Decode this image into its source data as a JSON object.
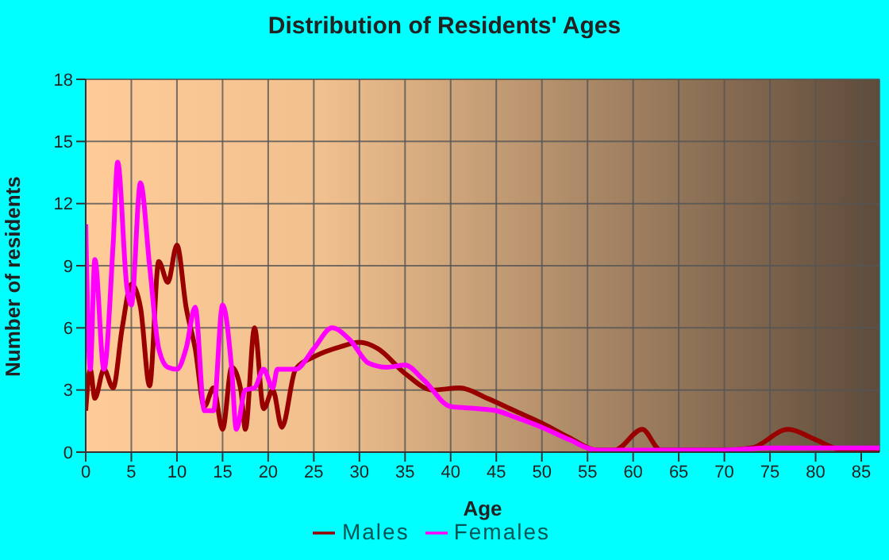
{
  "chart_data": {
    "type": "line",
    "title": "Distribution of Residents' Ages",
    "xlabel": "Age",
    "ylabel": "Number of residents",
    "xlim": [
      0,
      87
    ],
    "xticks": [
      0,
      5,
      10,
      15,
      20,
      25,
      30,
      35,
      40,
      45,
      50,
      55,
      60,
      65,
      70,
      75,
      80,
      85
    ],
    "ylim": [
      0,
      18
    ],
    "yticks": [
      0,
      3,
      6,
      9,
      12,
      15,
      18
    ],
    "grid": true,
    "legend": "bottom",
    "marker": "none",
    "line_style": "solid",
    "series": [
      {
        "name": "Males",
        "color": "#990000",
        "x": [
          0,
          0.5,
          1,
          2,
          3,
          4,
          5,
          6,
          7,
          8,
          9,
          10,
          11,
          12,
          13,
          14,
          15,
          16,
          17,
          17.5,
          18.5,
          19.5,
          20.5,
          21.5,
          23,
          25,
          28,
          30,
          32,
          35,
          38,
          41,
          44,
          47,
          50,
          53,
          56,
          58,
          61,
          63,
          65,
          70,
          73,
          77,
          80,
          83,
          87
        ],
        "values": [
          2,
          4,
          2.6,
          4,
          3.1,
          6,
          8.1,
          7,
          3.2,
          9.2,
          8.2,
          10,
          7,
          5,
          2.2,
          3.1,
          1.1,
          4.1,
          3,
          1.1,
          6,
          2.1,
          3,
          1.2,
          4,
          4.6,
          5.1,
          5.3,
          5,
          3.8,
          3,
          3.1,
          2.6,
          2,
          1.4,
          0.7,
          0.1,
          0.1,
          1.1,
          0.1,
          0.1,
          0.1,
          0.2,
          1.1,
          0.6,
          0.1,
          0.1
        ]
      },
      {
        "name": "Females",
        "color": "#ff00ff",
        "x": [
          0,
          0.5,
          1,
          2,
          3,
          3.5,
          4.5,
          5,
          6,
          7,
          8,
          9,
          10,
          11,
          12,
          13,
          14,
          15,
          16,
          16.5,
          17.5,
          18.5,
          19.5,
          20.5,
          21,
          23,
          25,
          27,
          29,
          31,
          33,
          35,
          37,
          40,
          43,
          45,
          47,
          50,
          53,
          56,
          60,
          65,
          70,
          75,
          80,
          87
        ],
        "values": [
          11,
          4,
          9.3,
          4,
          10,
          14,
          8,
          7.1,
          13,
          9,
          5,
          4.1,
          4,
          5,
          7,
          2,
          2,
          7.1,
          4,
          1.1,
          3,
          3.1,
          4,
          3.1,
          4,
          4,
          5,
          6,
          5.4,
          4.3,
          4.1,
          4.2,
          3.5,
          2.2,
          2.1,
          2,
          1.7,
          1.2,
          0.6,
          0.1,
          0.1,
          0.1,
          0.1,
          0.2,
          0.2,
          0.2
        ]
      }
    ]
  }
}
